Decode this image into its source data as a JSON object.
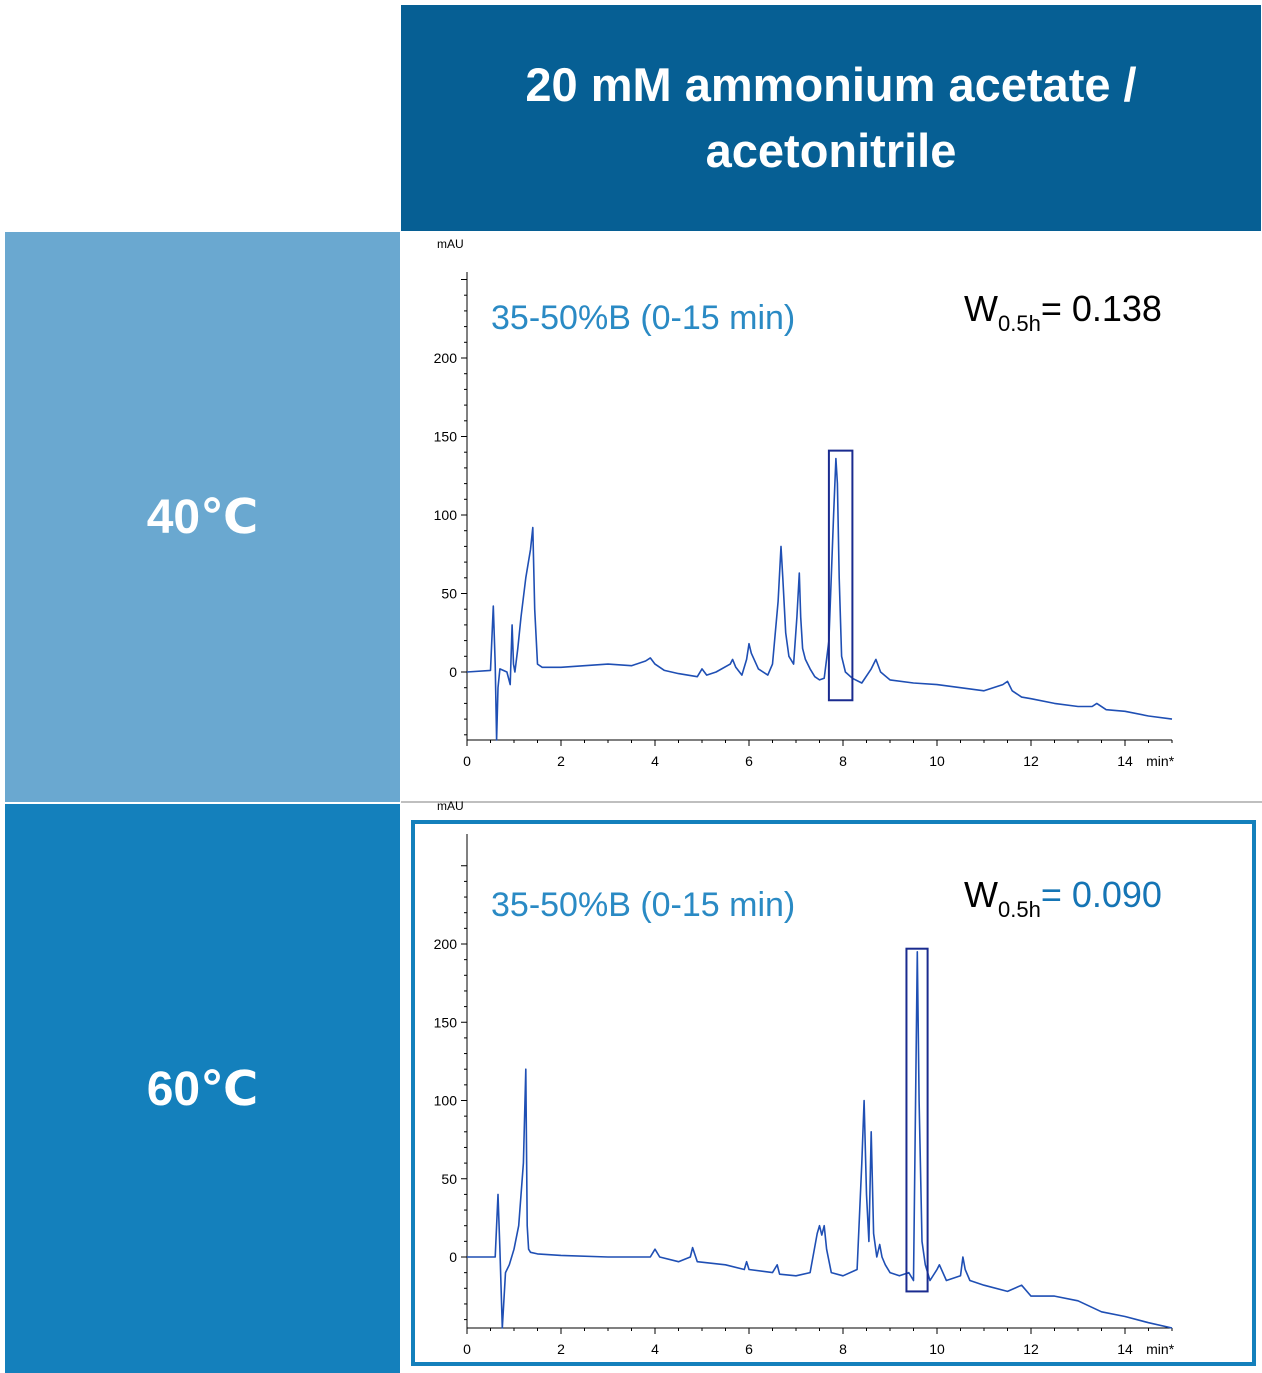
{
  "header": {
    "title": "20 mM ammonium acetate / acetonitrile"
  },
  "rows": [
    {
      "label": "40℃"
    },
    {
      "label": "60℃"
    }
  ],
  "colors": {
    "header_bg": "#065f94",
    "row1_bg": "#6aa8d0",
    "row2_bg": "#1480bc",
    "trace": "#1f4fb4",
    "highlight_box": "#1a2b8f",
    "method_text": "#2a8ac4",
    "w_value_highlight": "#1575b5"
  },
  "chart_data": [
    {
      "type": "line",
      "xlabel": "min*",
      "ylabel": "mAU",
      "xlim": [
        0,
        15
      ],
      "ylim": [
        -45,
        265
      ],
      "xticks": [
        0,
        2,
        4,
        6,
        8,
        10,
        12,
        14
      ],
      "yticks": [
        0,
        50,
        100,
        150,
        200
      ],
      "annotation": "35-50%B (0-15 min)",
      "w_label": "W",
      "w_subscript": "0.5h",
      "w_value": "= 0.138",
      "highlight_box": {
        "x0": 7.7,
        "x1": 8.2,
        "y0": -18,
        "y1": 141
      },
      "series": [
        {
          "x": [
            0,
            0.5,
            0.56,
            0.6,
            0.63,
            0.66,
            0.7,
            0.85,
            0.92,
            0.96,
            0.99,
            1.02,
            1.08,
            1.15,
            1.25,
            1.35,
            1.4,
            1.44,
            1.5,
            1.6,
            2.0,
            2.5,
            3.0,
            3.5,
            3.8,
            3.9,
            4.0,
            4.2,
            4.5,
            4.9,
            5.0,
            5.1,
            5.3,
            5.6,
            5.65,
            5.72,
            5.85,
            5.95,
            6.0,
            6.05,
            6.2,
            6.4,
            6.5,
            6.62,
            6.68,
            6.72,
            6.78,
            6.85,
            6.95,
            7.02,
            7.07,
            7.1,
            7.14,
            7.2,
            7.3,
            7.4,
            7.5,
            7.6,
            7.7,
            7.8,
            7.85,
            7.88,
            7.92,
            7.97,
            8.05,
            8.2,
            8.4,
            8.6,
            8.7,
            8.8,
            9.0,
            9.5,
            10.0,
            10.5,
            11.0,
            11.4,
            11.5,
            11.6,
            11.8,
            12.0,
            12.5,
            13.0,
            13.3,
            13.4,
            13.6,
            14.0,
            14.5,
            15.0
          ],
          "y": [
            0,
            1,
            42,
            5,
            -75,
            -10,
            2,
            0,
            -8,
            30,
            5,
            0,
            15,
            35,
            60,
            78,
            92,
            40,
            5,
            3,
            3,
            4,
            5,
            4,
            7,
            9,
            5,
            1,
            -1,
            -3,
            2,
            -2,
            0,
            5,
            8,
            3,
            -2,
            8,
            18,
            12,
            2,
            -2,
            5,
            45,
            80,
            60,
            25,
            10,
            5,
            35,
            63,
            35,
            15,
            8,
            2,
            -3,
            -5,
            -4,
            20,
            100,
            136,
            120,
            60,
            10,
            0,
            -4,
            -7,
            2,
            8,
            0,
            -5,
            -7,
            -8,
            -10,
            -12,
            -8,
            -6,
            -12,
            -16,
            -17,
            -20,
            -22,
            -22,
            -20,
            -24,
            -25,
            -28,
            -30
          ]
        }
      ]
    },
    {
      "type": "line",
      "xlabel": "min*",
      "ylabel": "mAU",
      "xlim": [
        0,
        15
      ],
      "ylim": [
        -45,
        265
      ],
      "xticks": [
        0,
        2,
        4,
        6,
        8,
        10,
        12,
        14
      ],
      "yticks": [
        0,
        50,
        100,
        150,
        200
      ],
      "annotation": "35-50%B (0-15 min)",
      "w_label": "W",
      "w_subscript": "0.5h",
      "w_value": "= 0.090",
      "highlight_box": {
        "x0": 9.35,
        "x1": 9.8,
        "y0": -22,
        "y1": 197
      },
      "series": [
        {
          "x": [
            0,
            0.6,
            0.66,
            0.7,
            0.75,
            0.78,
            0.82,
            0.9,
            1.0,
            1.1,
            1.2,
            1.25,
            1.28,
            1.31,
            1.35,
            1.5,
            2.0,
            3.0,
            3.9,
            4.0,
            4.1,
            4.5,
            4.75,
            4.8,
            4.9,
            5.5,
            5.9,
            5.95,
            6.0,
            6.5,
            6.6,
            6.65,
            7.0,
            7.3,
            7.45,
            7.5,
            7.55,
            7.6,
            7.65,
            7.75,
            8.0,
            8.3,
            8.4,
            8.45,
            8.5,
            8.55,
            8.6,
            8.65,
            8.72,
            8.78,
            8.83,
            8.9,
            9.0,
            9.2,
            9.4,
            9.5,
            9.58,
            9.62,
            9.68,
            9.75,
            9.85,
            10.0,
            10.05,
            10.2,
            10.5,
            10.55,
            10.6,
            10.7,
            11.0,
            11.5,
            11.8,
            12.0,
            12.5,
            13.0,
            13.5,
            14.0,
            14.5,
            15.0
          ],
          "y": [
            0,
            0,
            40,
            5,
            -70,
            -30,
            -10,
            -5,
            5,
            20,
            60,
            120,
            20,
            5,
            3,
            2,
            1,
            0,
            0,
            5,
            0,
            -3,
            0,
            6,
            -3,
            -5,
            -8,
            -3,
            -8,
            -10,
            -5,
            -11,
            -12,
            -10,
            15,
            20,
            14,
            20,
            5,
            -10,
            -12,
            -8,
            60,
            100,
            40,
            10,
            80,
            15,
            0,
            8,
            0,
            -5,
            -10,
            -12,
            -10,
            -15,
            195,
            100,
            10,
            -5,
            -15,
            -8,
            -5,
            -15,
            -12,
            0,
            -8,
            -15,
            -18,
            -22,
            -18,
            -25,
            -25,
            -28,
            -35,
            -38,
            -42,
            -48
          ]
        }
      ]
    }
  ]
}
